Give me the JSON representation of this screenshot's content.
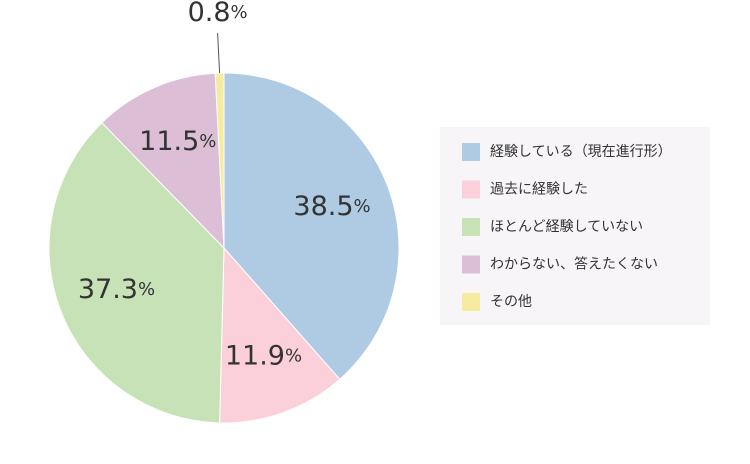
{
  "chart_data": {
    "type": "pie",
    "categories": [
      "経験している（現在進行形）",
      "過去に経験した",
      "ほとんど経験していない",
      "わからない、答えたくない",
      "その他"
    ],
    "values": [
      38.5,
      11.9,
      37.3,
      11.5,
      0.8
    ],
    "value_labels": [
      "38.5%",
      "11.9%",
      "37.3%",
      "11.5%",
      "0.8%"
    ],
    "colors": [
      "#aecbe3",
      "#fbd0da",
      "#c8e2b8",
      "#dcbfd6",
      "#f6eba0"
    ],
    "legend": "right"
  }
}
